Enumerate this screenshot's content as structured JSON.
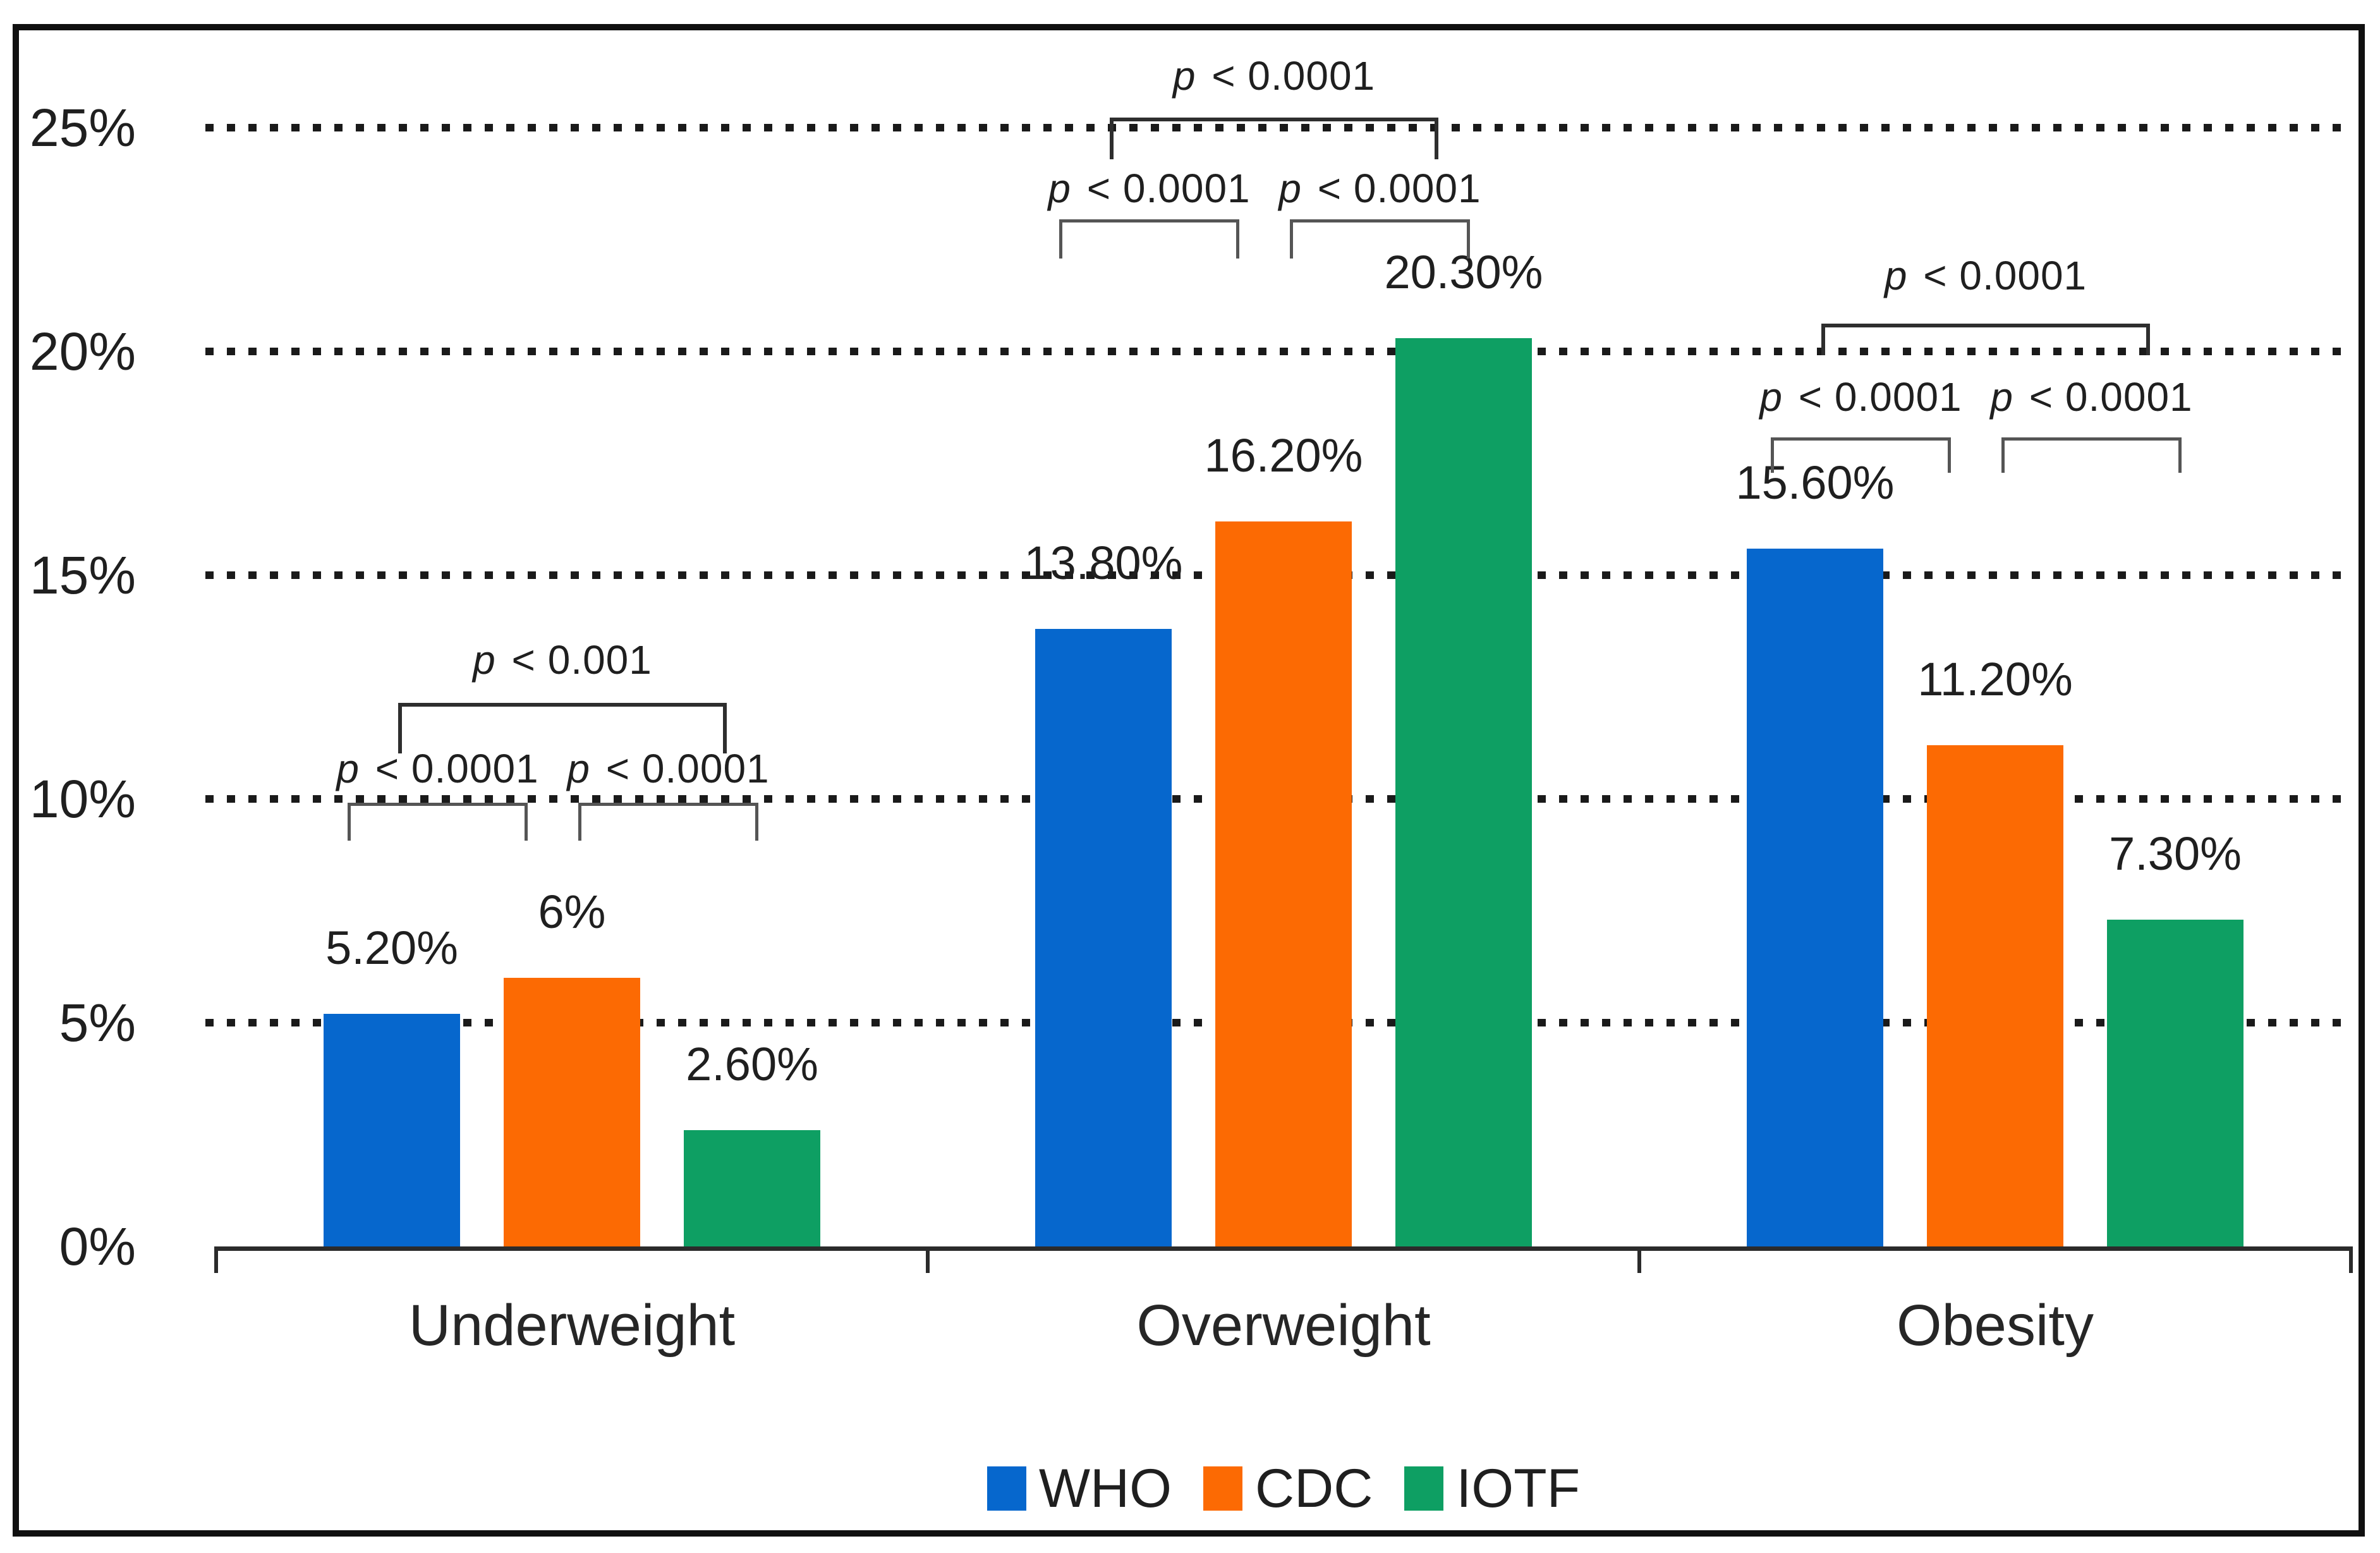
{
  "chart_data": {
    "type": "bar",
    "title": "",
    "categories": [
      "Underweight",
      "Overweight",
      "Obesity"
    ],
    "series": [
      {
        "name": "WHO",
        "color": "#0667CD",
        "values": [
          5.2,
          13.8,
          15.6
        ],
        "value_labels": [
          "5.20%",
          "13.80%",
          "15.60%"
        ]
      },
      {
        "name": "CDC",
        "color": "#FC6A03",
        "values": [
          6.0,
          16.2,
          11.2
        ],
        "value_labels": [
          "6%",
          "16.20%",
          "11.20%"
        ]
      },
      {
        "name": "IOTF",
        "color": "#0E9F63",
        "values": [
          2.6,
          20.3,
          7.3
        ],
        "value_labels": [
          "2.60%",
          "20.30%",
          "7.30%"
        ]
      }
    ],
    "xlabel": "",
    "ylabel": "",
    "ylim": [
      0,
      25
    ],
    "yticks": [
      {
        "value": 0,
        "label": "0%"
      },
      {
        "value": 5,
        "label": "5%"
      },
      {
        "value": 10,
        "label": "10%"
      },
      {
        "value": 15,
        "label": "15%"
      },
      {
        "value": 20,
        "label": "20%"
      },
      {
        "value": 25,
        "label": "25%"
      }
    ],
    "grid": "horizontal-dotted",
    "legend": {
      "position": "bottom",
      "entries": [
        "WHO",
        "CDC",
        "IOTF"
      ]
    },
    "significance": [
      {
        "category": "Underweight",
        "overall": {
          "pair": [
            "WHO",
            "IOTF"
          ],
          "label": "p < 0.001"
        },
        "left": {
          "pair": [
            "WHO",
            "CDC"
          ],
          "label": "p < 0.0001"
        },
        "right": {
          "pair": [
            "CDC",
            "IOTF"
          ],
          "label": "p < 0.0001"
        }
      },
      {
        "category": "Overweight",
        "overall": {
          "pair": [
            "WHO",
            "IOTF"
          ],
          "label": "p < 0.0001"
        },
        "left": {
          "pair": [
            "WHO",
            "CDC"
          ],
          "label": "p < 0.0001"
        },
        "right": {
          "pair": [
            "CDC",
            "IOTF"
          ],
          "label": "p < 0.0001"
        }
      },
      {
        "category": "Obesity",
        "overall": {
          "pair": [
            "WHO",
            "IOTF"
          ],
          "label": "p < 0.0001"
        },
        "left": {
          "pair": [
            "WHO",
            "CDC"
          ],
          "label": "p < 0.0001"
        },
        "right": {
          "pair": [
            "CDC",
            "IOTF"
          ],
          "label": "p < 0.0001"
        }
      }
    ]
  }
}
